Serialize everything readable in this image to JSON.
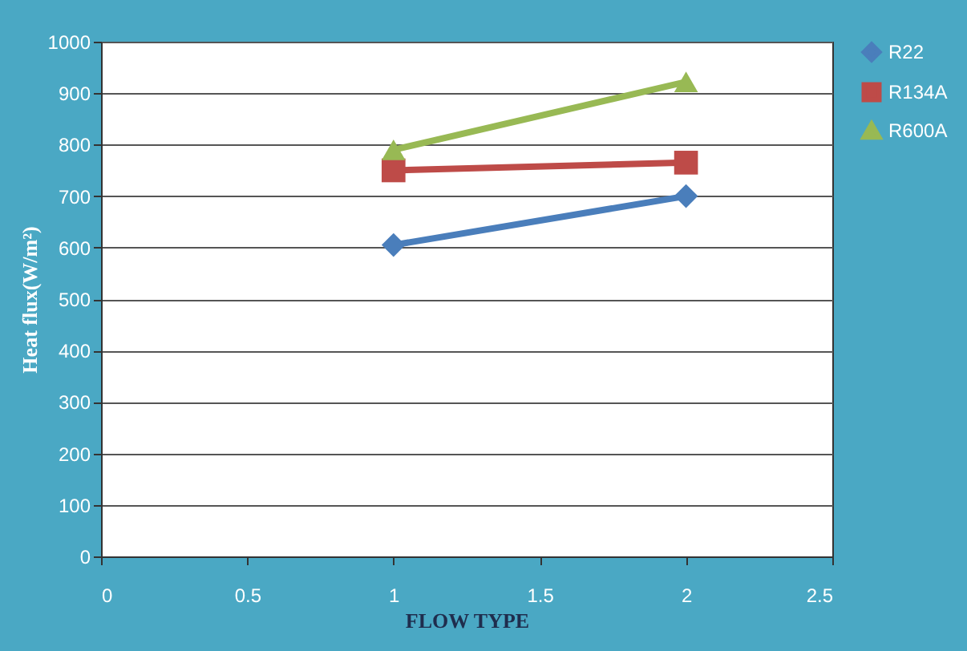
{
  "chart_data": {
    "type": "line",
    "xlabel": "FLOW TYPE",
    "ylabel": "Heat flux(W/m²)",
    "x": [
      1,
      2
    ],
    "series": [
      {
        "name": "R22",
        "color": "#4a7ebb",
        "values": [
          605,
          700
        ],
        "marker": "diamond"
      },
      {
        "name": "R134A",
        "color": "#be4b48",
        "values": [
          750,
          765
        ],
        "marker": "square"
      },
      {
        "name": "R600A",
        "color": "#98b954",
        "values": [
          790,
          922
        ],
        "marker": "triangle"
      }
    ],
    "xlim": [
      0,
      2.5
    ],
    "xticks": [
      0,
      0.5,
      1,
      1.5,
      2,
      2.5
    ],
    "ylim": [
      0,
      1000
    ],
    "yticks": [
      0,
      100,
      200,
      300,
      400,
      500,
      600,
      700,
      800,
      900,
      1000
    ],
    "grid": "y",
    "legend": "right"
  }
}
